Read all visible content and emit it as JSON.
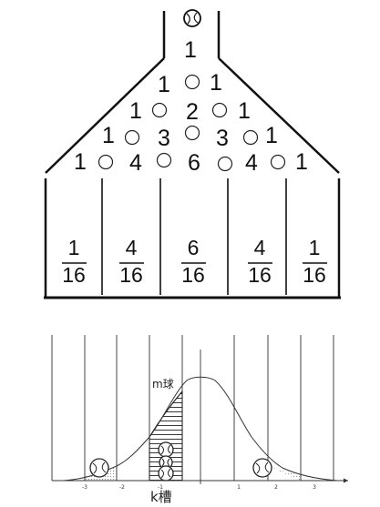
{
  "galton_board": {
    "rows": [
      [
        "1"
      ],
      [
        "1",
        "1"
      ],
      [
        "1",
        "2",
        "1"
      ],
      [
        "1",
        "3",
        "3",
        "1"
      ],
      [
        "1",
        "4",
        "6",
        "4",
        "1"
      ]
    ],
    "bins": [
      {
        "numerator": "1",
        "denominator": "16"
      },
      {
        "numerator": "4",
        "denominator": "16"
      },
      {
        "numerator": "6",
        "denominator": "16"
      },
      {
        "numerator": "4",
        "denominator": "16"
      },
      {
        "numerator": "1",
        "denominator": "16"
      }
    ]
  },
  "distribution": {
    "curve_label": "m球",
    "slot_label": "k槽",
    "x_ticks": [
      "-3",
      "-2",
      "-1",
      "1",
      "2",
      "3"
    ]
  }
}
